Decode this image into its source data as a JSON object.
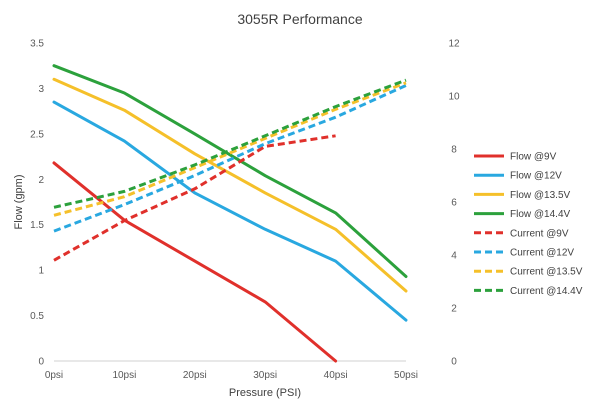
{
  "chart_data": {
    "type": "line",
    "title": "3055R Performance",
    "xlabel": "Pressure (PSI)",
    "ylabel": "Flow (gpm)",
    "y2label": "",
    "categories": [
      "0psi",
      "10psi",
      "20psi",
      "30psi",
      "40psi",
      "50psi"
    ],
    "x": [
      0,
      10,
      20,
      30,
      40,
      50
    ],
    "ylim": [
      0,
      3.5
    ],
    "y_ticks": [
      "0",
      "0.5",
      "1",
      "1.5",
      "2",
      "2.5",
      "3",
      "3.5"
    ],
    "y2lim": [
      0,
      12
    ],
    "y2_ticks": [
      "0",
      "2",
      "4",
      "6",
      "8",
      "10",
      "12"
    ],
    "grid": false,
    "legend_position": "right",
    "series": [
      {
        "name": "Flow @9V",
        "axis": "left",
        "dash": false,
        "color": "#e0302b",
        "x": [
          0,
          10,
          20,
          30,
          40
        ],
        "values": [
          2.18,
          1.55,
          1.1,
          0.65,
          0.0
        ]
      },
      {
        "name": "Flow @12V",
        "axis": "left",
        "dash": false,
        "color": "#29a8e0",
        "x": [
          0,
          10,
          20,
          30,
          40,
          50
        ],
        "values": [
          2.85,
          2.42,
          1.85,
          1.45,
          1.1,
          0.45
        ]
      },
      {
        "name": "Flow @13.5V",
        "axis": "left",
        "dash": false,
        "color": "#f5c02a",
        "x": [
          0,
          10,
          20,
          30,
          40,
          50
        ],
        "values": [
          3.1,
          2.76,
          2.28,
          1.85,
          1.45,
          0.77
        ]
      },
      {
        "name": "Flow @14.4V",
        "axis": "left",
        "dash": false,
        "color": "#2ca13c",
        "x": [
          0,
          10,
          20,
          30,
          40,
          50
        ],
        "values": [
          3.25,
          2.95,
          2.5,
          2.04,
          1.63,
          0.93
        ]
      },
      {
        "name": "Current @9V",
        "axis": "right",
        "dash": true,
        "color": "#e0302b",
        "x": [
          0,
          10,
          20,
          30,
          40
        ],
        "values": [
          3.8,
          5.3,
          6.5,
          8.1,
          8.5
        ]
      },
      {
        "name": "Current @12V",
        "axis": "right",
        "dash": true,
        "color": "#29a8e0",
        "x": [
          0,
          10,
          20,
          30,
          40,
          50
        ],
        "values": [
          4.9,
          5.9,
          7.0,
          8.2,
          9.2,
          10.4
        ]
      },
      {
        "name": "Current @13.5V",
        "axis": "right",
        "dash": true,
        "color": "#f5c02a",
        "x": [
          0,
          10,
          20,
          30,
          40,
          50
        ],
        "values": [
          5.5,
          6.2,
          7.3,
          8.4,
          9.5,
          10.5
        ]
      },
      {
        "name": "Current @14.4V",
        "axis": "right",
        "dash": true,
        "color": "#2ca13c",
        "x": [
          0,
          10,
          20,
          30,
          40,
          50
        ],
        "values": [
          5.8,
          6.4,
          7.4,
          8.5,
          9.6,
          10.6
        ]
      }
    ]
  }
}
